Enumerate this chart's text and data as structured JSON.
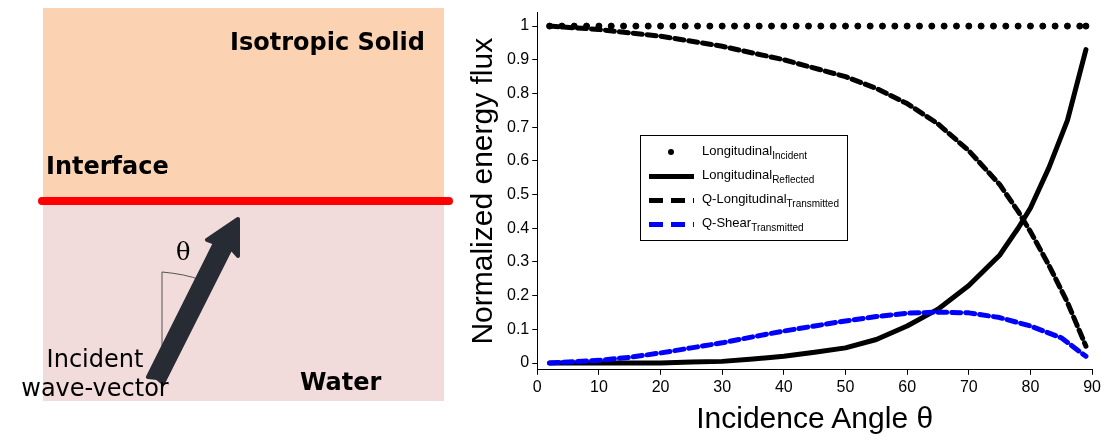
{
  "chart_data": {
    "type": "line",
    "xlabel": "Incidence Angle θ",
    "ylabel": "Normalized energy flux",
    "xlim": [
      0,
      90
    ],
    "ylim": [
      -0.02,
      1.04
    ],
    "xticks": [
      0,
      10,
      20,
      30,
      40,
      50,
      60,
      70,
      80,
      90
    ],
    "yticks": [
      0,
      0.1,
      0.2,
      0.3,
      0.4,
      0.5,
      0.6,
      0.7,
      0.8,
      0.9,
      1
    ],
    "grid": false,
    "legend": "center left",
    "annotations": [
      "Isotropic Solid",
      "Interface",
      "θ",
      "Incident wave-vector",
      "Water"
    ],
    "series": [
      {
        "name": "Longitudinal$_{Incident}$",
        "type": "scatter",
        "marker": "circle",
        "color": "#000000",
        "x": [
          2,
          4,
          6,
          8,
          10,
          12,
          14,
          16,
          18,
          20,
          22,
          24,
          26,
          28,
          30,
          32,
          34,
          36,
          38,
          40,
          42,
          44,
          46,
          48,
          50,
          52,
          54,
          56,
          58,
          60,
          62,
          64,
          66,
          68,
          70,
          72,
          74,
          76,
          78,
          80,
          82,
          84,
          86,
          88,
          89
        ],
        "values": [
          1,
          1,
          1,
          1,
          1,
          1,
          1,
          1,
          1,
          1,
          1,
          1,
          1,
          1,
          1,
          1,
          1,
          1,
          1,
          1,
          1,
          1,
          1,
          1,
          1,
          1,
          1,
          1,
          1,
          1,
          1,
          1,
          1,
          1,
          1,
          1,
          1,
          1,
          1,
          1,
          1,
          1,
          1,
          1,
          1
        ]
      },
      {
        "name": "Longitudinal$_{Reflected}$",
        "line_style": "solid",
        "color": "#000000",
        "x": [
          2,
          10,
          20,
          25,
          30,
          35,
          40,
          45,
          50,
          55,
          60,
          65,
          70,
          75,
          78,
          80,
          83,
          86,
          89
        ],
        "values": [
          0,
          0,
          0,
          0.003,
          0.005,
          0.012,
          0.02,
          0.032,
          0.045,
          0.07,
          0.11,
          0.16,
          0.23,
          0.32,
          0.4,
          0.46,
          0.58,
          0.72,
          0.93
        ]
      },
      {
        "name": "Q-Longitudinal$_{Transmitted}$",
        "line_style": "dashed",
        "color": "#000000",
        "x": [
          2,
          10,
          20,
          30,
          40,
          50,
          55,
          60,
          65,
          70,
          75,
          78,
          80,
          83,
          86,
          89
        ],
        "values": [
          1,
          0.99,
          0.97,
          0.94,
          0.9,
          0.85,
          0.815,
          0.77,
          0.71,
          0.63,
          0.53,
          0.45,
          0.39,
          0.29,
          0.18,
          0.05
        ]
      },
      {
        "name": "Q-Shear$_{Transmitted}$",
        "line_style": "dashed",
        "color": "#0000ff",
        "x": [
          2,
          10,
          15,
          20,
          25,
          30,
          35,
          40,
          45,
          50,
          55,
          60,
          65,
          70,
          75,
          80,
          85,
          89
        ],
        "values": [
          0,
          0.008,
          0.017,
          0.03,
          0.045,
          0.06,
          0.078,
          0.095,
          0.11,
          0.125,
          0.138,
          0.148,
          0.151,
          0.149,
          0.135,
          0.11,
          0.075,
          0.02
        ]
      }
    ]
  }
}
